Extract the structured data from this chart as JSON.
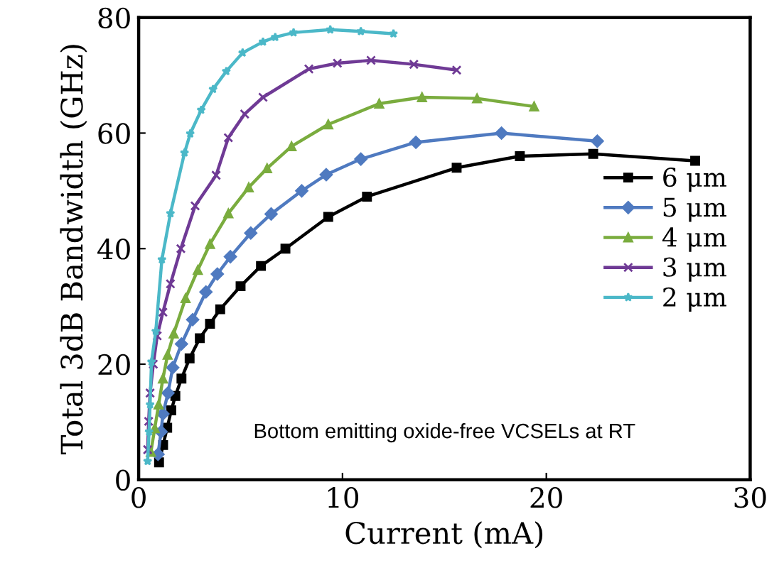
{
  "chart_data": {
    "type": "line",
    "xlabel": "Current (mA)",
    "ylabel": "Total 3dB Bandwidth (GHz)",
    "xlim": [
      0,
      30
    ],
    "ylim": [
      0,
      80
    ],
    "xticks": [
      0,
      10,
      20,
      30
    ],
    "yticks": [
      0,
      20,
      40,
      60,
      80
    ],
    "grid": false,
    "legend": "right",
    "annotations": [
      "Bottom emitting oxide-free VCSELs at RT"
    ],
    "series": [
      {
        "name": "6 μm",
        "color": "#000000",
        "marker": "square",
        "x": [
          1.0,
          1.2,
          1.4,
          1.6,
          1.8,
          2.1,
          2.5,
          3.0,
          3.5,
          4.0,
          5.0,
          6.0,
          7.2,
          9.3,
          11.2,
          15.6,
          18.7,
          22.3,
          27.3
        ],
        "values": [
          3,
          6,
          9,
          12,
          14.5,
          17.5,
          21,
          24.5,
          27,
          29.5,
          33.5,
          37,
          40,
          45.5,
          49,
          54,
          56,
          56.4,
          55.2
        ]
      },
      {
        "name": "5 μm",
        "color": "#4f7ac0",
        "marker": "diamond",
        "x": [
          0.95,
          1.1,
          1.19,
          1.44,
          1.67,
          2.1,
          2.65,
          3.3,
          3.86,
          4.5,
          5.5,
          6.5,
          8.0,
          9.2,
          10.9,
          13.6,
          17.8,
          22.5
        ],
        "values": [
          4.4,
          8.3,
          11.4,
          15,
          19.4,
          23.5,
          27.7,
          32.5,
          35.6,
          38.6,
          42.7,
          46,
          50,
          52.8,
          55.5,
          58.4,
          60,
          58.6
        ]
      },
      {
        "name": "4 μm",
        "color": "#7aac3e",
        "marker": "triangle",
        "x": [
          0.6,
          0.79,
          0.98,
          1.19,
          1.42,
          1.72,
          2.3,
          2.9,
          3.5,
          4.4,
          5.4,
          6.3,
          7.5,
          9.3,
          11.8,
          13.9,
          16.6,
          19.4
        ],
        "values": [
          4.8,
          8.9,
          13,
          17.5,
          21.6,
          25.3,
          31.4,
          36.3,
          40.8,
          46.1,
          50.6,
          53.9,
          57.7,
          61.5,
          65.1,
          66.2,
          66,
          64.6
        ]
      },
      {
        "name": "3 μm",
        "color": "#6f3a95",
        "marker": "cross",
        "x": [
          0.44,
          0.49,
          0.56,
          0.72,
          0.91,
          1.19,
          1.56,
          2.07,
          2.77,
          3.8,
          4.4,
          5.2,
          6.1,
          8.35,
          9.75,
          11.4,
          13.5,
          15.6
        ],
        "values": [
          5.2,
          10.1,
          15,
          20,
          24.9,
          29,
          33.9,
          40,
          47.4,
          52.7,
          59.2,
          63.3,
          66.2,
          71.1,
          72.1,
          72.6,
          71.9,
          70.9
        ]
      },
      {
        "name": "2 μm",
        "color": "#4bb8c8",
        "marker": "star",
        "x": [
          0.44,
          0.51,
          0.56,
          0.63,
          0.84,
          1.14,
          1.56,
          2.25,
          2.53,
          3.07,
          3.65,
          4.3,
          5.1,
          6.1,
          6.7,
          7.6,
          9.4,
          10.9,
          12.5
        ],
        "values": [
          3.2,
          8.3,
          13,
          20.4,
          25.7,
          38.1,
          46.1,
          56.6,
          59.9,
          64,
          67.6,
          70.7,
          73.9,
          75.8,
          76.6,
          77.4,
          77.9,
          77.6,
          77.2
        ]
      }
    ]
  }
}
